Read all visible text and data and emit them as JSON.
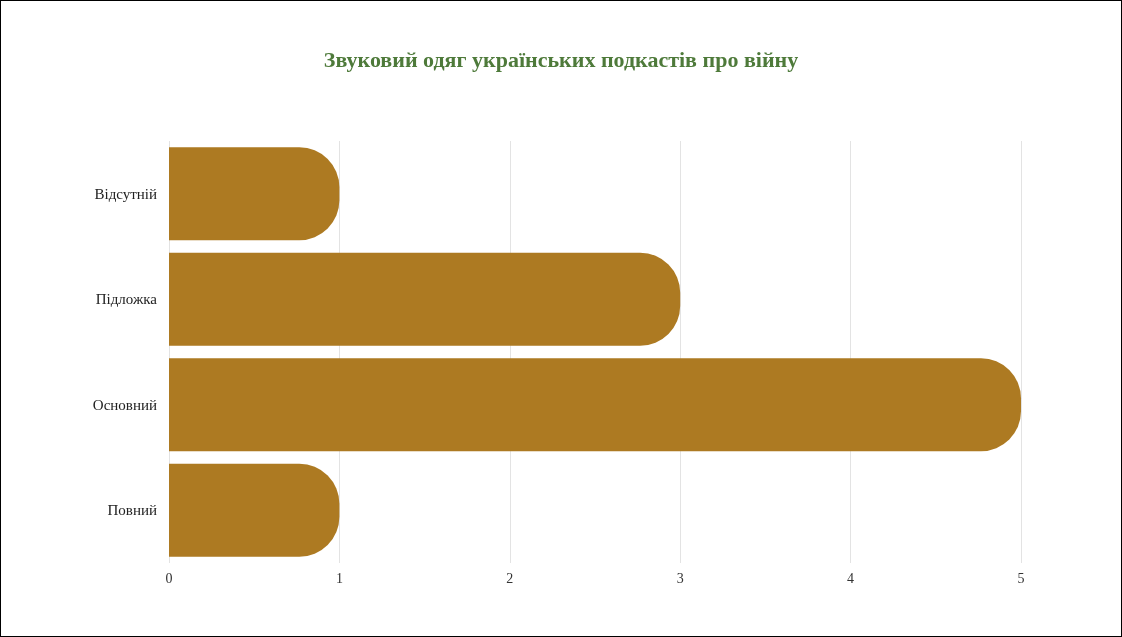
{
  "chart_data": {
    "type": "bar",
    "orientation": "horizontal",
    "title": "Звуковий одяг українських подкастів про війну",
    "categories": [
      "Відсутній",
      "Підложка",
      "Основний",
      "Повний"
    ],
    "values": [
      1,
      3,
      5,
      1
    ],
    "color": "#ad7a22",
    "xlim": [
      0,
      5
    ],
    "xticks": [
      0,
      1,
      2,
      3,
      4,
      5
    ],
    "grid": "x"
  }
}
